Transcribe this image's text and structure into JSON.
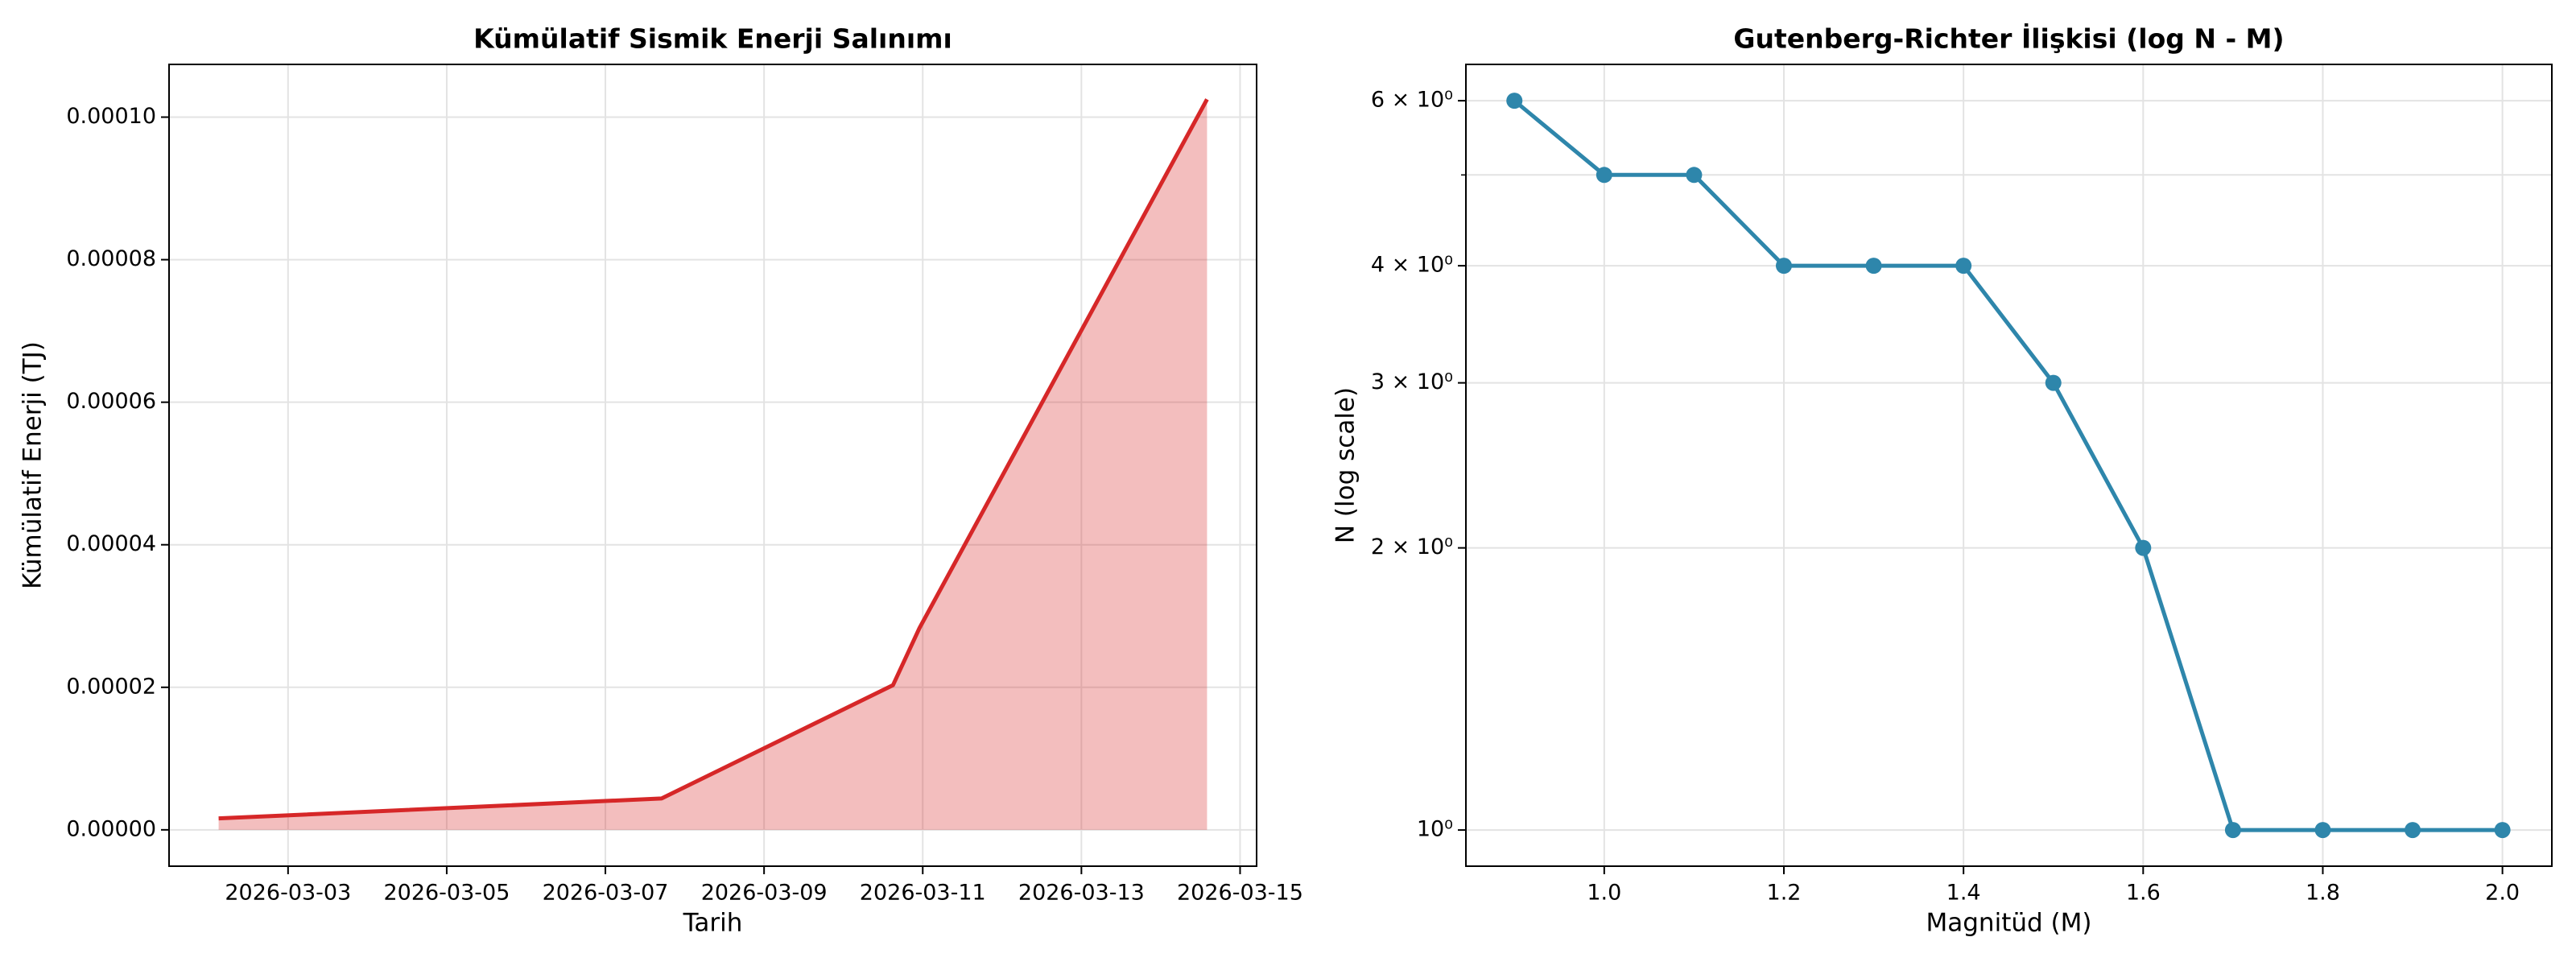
{
  "chart_data": [
    {
      "type": "area",
      "title": "Kümülatif Sismik Enerji Salınımı",
      "xlabel": "Tarih",
      "ylabel": "Kümülatif Enerji (TJ)",
      "x": [
        "2026-03-02T03:00",
        "2026-03-07T17:00",
        "2026-03-10T15:00",
        "2026-03-10T23:00",
        "2026-03-14T14:00"
      ],
      "series": [
        {
          "name": "Kümülatif Enerji",
          "color": "#d62728",
          "values": [
            1.6e-06,
            4.4e-06,
            2.03e-05,
            2.83e-05,
            0.0001025
          ]
        }
      ],
      "xlim": [
        "2026-03-01T12:00",
        "2026-03-15T05:00"
      ],
      "xticks": [
        "2026-03-03",
        "2026-03-05",
        "2026-03-07",
        "2026-03-09",
        "2026-03-11",
        "2026-03-13",
        "2026-03-15"
      ],
      "ylim": [
        -5.1e-06,
        0.0001074
      ],
      "yticks": [
        {
          "value": 0,
          "label": "0.00000"
        },
        {
          "value": 2e-05,
          "label": "0.00002"
        },
        {
          "value": 4e-05,
          "label": "0.00004"
        },
        {
          "value": 6e-05,
          "label": "0.00006"
        },
        {
          "value": 8e-05,
          "label": "0.00008"
        },
        {
          "value": 0.0001,
          "label": "0.00010"
        }
      ],
      "grid": true,
      "log_y": false
    },
    {
      "type": "line",
      "title": "Gutenberg-Richter İlişkisi (log N - M)",
      "xlabel": "Magnitüd (M)",
      "ylabel": "N (log scale)",
      "x": [
        0.9,
        1.0,
        1.1,
        1.2,
        1.3,
        1.4,
        1.5,
        1.6,
        1.7,
        1.8,
        1.9,
        2.0
      ],
      "series": [
        {
          "name": "N",
          "color": "#2e86ab",
          "values": [
            6,
            5,
            5,
            4,
            4,
            4,
            3,
            2,
            1,
            1,
            1,
            1
          ]
        }
      ],
      "xlim": [
        0.846,
        2.055
      ],
      "xticks": [
        {
          "value": 1,
          "label": "1.0"
        },
        1.2,
        1.4,
        1.6,
        1.8,
        {
          "value": 2,
          "label": "2.0"
        }
      ],
      "ylim": [
        0.915,
        6.56
      ],
      "yticks": [
        {
          "value": 1,
          "label": "10⁰"
        },
        {
          "value": 2,
          "label": "2 × 10⁰"
        },
        {
          "value": 3,
          "label": "3 × 10⁰"
        },
        {
          "value": 4,
          "label": "4 × 10⁰"
        },
        {
          "value": 6,
          "label": "6 × 10⁰"
        }
      ],
      "yminor": [
        5
      ],
      "grid": true,
      "log_y": true,
      "markers": true
    }
  ]
}
